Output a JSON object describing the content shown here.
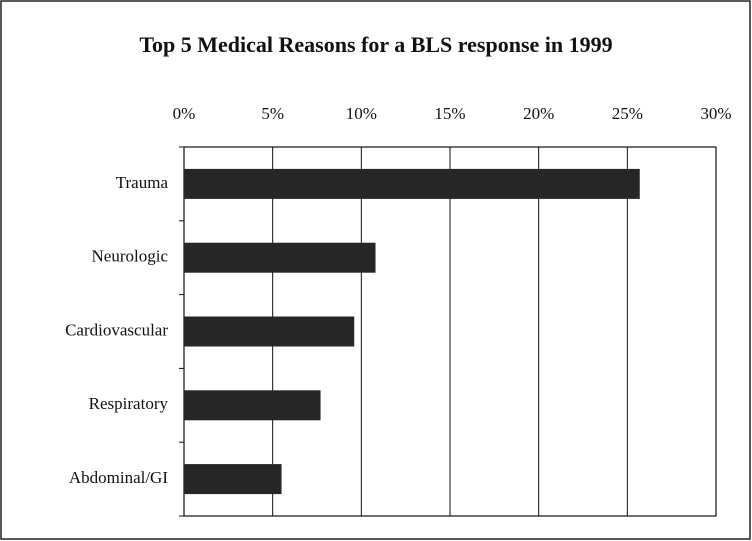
{
  "chart_data": {
    "type": "bar",
    "orientation": "horizontal",
    "title": "Top 5 Medical Reasons for a BLS response in 1999",
    "categories": [
      "Trauma",
      "Neurologic",
      "Cardiovascular",
      "Respiratory",
      "Abdominal/GI"
    ],
    "values": [
      25.7,
      10.8,
      9.6,
      7.7,
      5.5
    ],
    "color": "#262626",
    "xlim": [
      0,
      30
    ],
    "xticks": [
      {
        "value": 0,
        "label": "0%"
      },
      {
        "value": 5,
        "label": "5%"
      },
      {
        "value": 10,
        "label": "10%"
      },
      {
        "value": 15,
        "label": "15%"
      },
      {
        "value": 20,
        "label": "20%"
      },
      {
        "value": 25,
        "label": "25%"
      },
      {
        "value": 30,
        "label": "30%"
      }
    ],
    "grid": true
  }
}
